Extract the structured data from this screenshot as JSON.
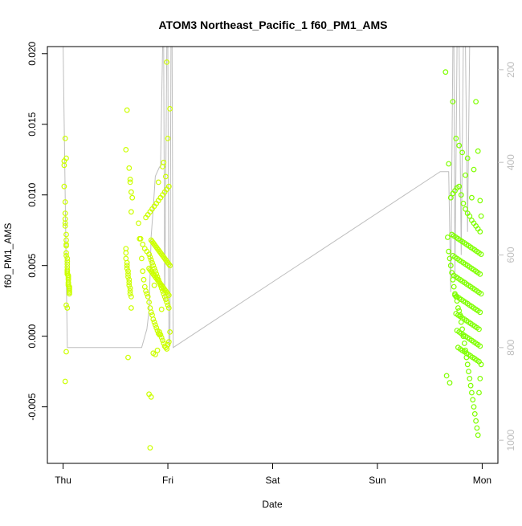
{
  "chart_data": {
    "type": "scatter",
    "title": "ATOM3 Northeast_Pacific_1 f60_PM1_AMS",
    "xlabel": "Date",
    "ylabel": "f60_PM1_AMS",
    "x_unit": "days since Thu 00:00",
    "xlim": [
      -0.15,
      4.15
    ],
    "ylim": [
      -0.009,
      0.0205
    ],
    "x_ticks": [
      {
        "value": 0,
        "label": "Thu"
      },
      {
        "value": 1,
        "label": "Fri"
      },
      {
        "value": 2,
        "label": "Sat"
      },
      {
        "value": 3,
        "label": "Sun"
      },
      {
        "value": 4,
        "label": "Mon"
      }
    ],
    "y_ticks": [
      {
        "value": -0.005,
        "label": "-0.005"
      },
      {
        "value": 0.0,
        "label": "0.000"
      },
      {
        "value": 0.005,
        "label": "0.005"
      },
      {
        "value": 0.01,
        "label": "0.010"
      },
      {
        "value": 0.015,
        "label": "0.015"
      },
      {
        "value": 0.02,
        "label": "0.020"
      }
    ],
    "secondary_axis": {
      "description": "altitude (inverted), no label",
      "lim": [
        150,
        1050
      ],
      "ticks": [
        {
          "value": 200,
          "label": "200"
        },
        {
          "value": 400,
          "label": "400"
        },
        {
          "value": 600,
          "label": "600"
        },
        {
          "value": 800,
          "label": "800"
        },
        {
          "value": 1000,
          "label": "1000"
        }
      ]
    },
    "grid": false,
    "colors": {
      "points_early": "#ccff00",
      "points_late": "#7fff00",
      "altitude_line": "#bebebe",
      "axis": "#000000",
      "secondary_axis": "#bebebe"
    },
    "altitude_trace": [
      [
        0.0,
        150
      ],
      [
        0.04,
        800
      ],
      [
        0.3,
        800
      ],
      [
        0.6,
        800
      ],
      [
        0.75,
        800
      ],
      [
        0.8,
        760
      ],
      [
        0.82,
        720
      ],
      [
        0.83,
        640
      ],
      [
        0.84,
        560
      ],
      [
        0.86,
        500
      ],
      [
        0.88,
        430
      ],
      [
        0.9,
        420
      ],
      [
        0.92,
        410
      ],
      [
        0.93,
        410
      ],
      [
        0.95,
        150
      ],
      [
        0.96,
        150
      ],
      [
        0.97,
        700
      ],
      [
        0.98,
        440
      ],
      [
        0.99,
        150
      ],
      [
        1.0,
        150
      ],
      [
        1.01,
        800
      ],
      [
        1.02,
        780
      ],
      [
        1.03,
        150
      ],
      [
        1.04,
        150
      ],
      [
        1.05,
        800
      ],
      [
        3.6,
        420
      ],
      [
        3.68,
        420
      ],
      [
        3.7,
        680
      ],
      [
        3.72,
        150
      ],
      [
        3.73,
        150
      ],
      [
        3.74,
        650
      ],
      [
        3.76,
        150
      ],
      [
        3.78,
        150
      ],
      [
        3.8,
        600
      ],
      [
        3.82,
        150
      ],
      [
        3.84,
        150
      ],
      [
        3.86,
        550
      ],
      [
        3.88,
        150
      ],
      [
        3.9,
        150
      ]
    ],
    "series": [
      {
        "x": [
          0.01,
          0.01,
          0.01,
          0.02,
          0.02,
          0.02,
          0.02,
          0.02,
          0.03,
          0.03,
          0.03,
          0.03,
          0.03,
          0.03,
          0.04,
          0.04,
          0.04,
          0.04,
          0.04,
          0.04,
          0.04,
          0.04,
          0.05,
          0.05,
          0.05,
          0.05,
          0.05,
          0.05,
          0.05,
          0.06,
          0.06,
          0.06,
          0.06,
          0.06,
          0.06,
          0.03,
          0.04,
          0.02,
          0.03,
          0.02,
          0.03,
          0.6,
          0.6,
          0.6,
          0.61,
          0.61,
          0.61,
          0.62,
          0.62,
          0.62,
          0.63,
          0.63,
          0.63,
          0.64,
          0.64,
          0.64,
          0.65,
          0.65,
          0.65,
          0.6,
          0.61,
          0.63,
          0.64,
          0.65,
          0.66,
          0.62,
          0.64,
          0.72,
          0.73,
          0.74,
          0.75,
          0.76,
          0.77,
          0.78,
          0.79,
          0.8,
          0.81,
          0.82,
          0.83,
          0.84,
          0.85,
          0.86,
          0.87,
          0.88,
          0.89,
          0.9,
          0.91,
          0.92,
          0.93,
          0.94,
          0.95,
          0.96,
          0.97,
          0.98,
          0.99,
          1.0,
          1.01,
          1.02,
          0.76,
          0.78,
          0.8,
          0.82,
          0.83,
          0.84,
          0.85,
          0.86,
          0.87,
          0.88,
          0.89,
          0.9,
          0.91,
          0.92,
          0.93,
          0.94,
          0.95,
          0.96,
          0.97,
          0.98,
          0.99,
          1.0,
          1.01,
          0.79,
          0.81,
          0.83,
          0.85,
          0.87,
          0.89,
          0.91,
          0.93,
          0.95,
          0.97,
          0.99,
          1.01,
          0.84,
          0.85,
          0.86,
          0.87,
          0.88,
          0.89,
          0.9,
          0.91,
          0.92,
          0.93,
          0.94,
          0.95,
          0.96,
          0.97,
          0.98,
          0.99,
          1.0,
          1.01,
          1.02,
          0.82,
          0.84,
          0.86,
          0.88,
          0.9,
          0.92,
          0.94,
          0.96,
          0.98,
          1.0,
          1.02,
          0.83,
          0.87,
          0.91,
          0.95,
          0.99,
          0.82,
          0.83,
          0.84,
          0.85,
          0.86,
          0.87,
          0.88,
          0.89,
          0.9,
          0.91,
          0.92,
          0.93,
          0.94,
          0.95,
          0.96,
          0.97,
          0.98,
          0.99,
          1.0,
          1.01
        ],
        "y": [
          0.0124,
          0.0121,
          0.0106,
          0.0095,
          0.0087,
          0.0083,
          0.008,
          0.0078,
          0.0072,
          0.0068,
          0.0065,
          0.0064,
          0.0059,
          0.0057,
          0.0055,
          0.0053,
          0.0051,
          0.0049,
          0.0047,
          0.0046,
          0.0045,
          0.0044,
          0.0043,
          0.0042,
          0.0041,
          0.004,
          0.0038,
          0.0037,
          0.0036,
          0.0035,
          0.0034,
          0.0033,
          0.0032,
          0.0031,
          0.003,
          0.0022,
          0.002,
          0.014,
          -0.0011,
          -0.0032,
          0.0126,
          0.0062,
          0.0059,
          0.0055,
          0.0052,
          0.005,
          0.0048,
          0.0046,
          0.0044,
          0.0042,
          0.004,
          0.0038,
          0.0036,
          0.0034,
          0.0032,
          0.003,
          0.0028,
          0.002,
          0.0088,
          0.0132,
          0.016,
          0.0119,
          0.0111,
          0.0102,
          0.0098,
          -0.0015,
          0.0109,
          0.008,
          0.0069,
          0.0069,
          0.0055,
          0.0046,
          0.004,
          0.0035,
          0.0032,
          0.003,
          0.0028,
          0.0024,
          0.002,
          0.0017,
          0.0015,
          0.0012,
          0.001,
          0.0008,
          0.0006,
          0.0004,
          0.0002,
          0.0003,
          0.0001,
          -0.0001,
          -0.0003,
          -0.0005,
          -0.0007,
          -0.0008,
          -0.0009,
          -0.0006,
          -0.0004,
          0.0003,
          0.0065,
          0.0062,
          0.006,
          0.0058,
          0.0056,
          0.0054,
          0.0052,
          0.005,
          0.0048,
          0.0046,
          0.0044,
          0.0042,
          0.004,
          0.0038,
          0.0036,
          0.0034,
          0.0032,
          0.003,
          0.0028,
          0.0026,
          0.0024,
          0.0022,
          0.002,
          0.0084,
          0.0086,
          0.0088,
          0.009,
          0.0092,
          0.0094,
          0.0096,
          0.0098,
          0.01,
          0.0102,
          0.0104,
          0.0106,
          0.0068,
          0.0067,
          0.0066,
          0.0065,
          0.0064,
          0.0063,
          0.0062,
          0.0061,
          0.006,
          0.0059,
          0.0058,
          0.0057,
          0.0056,
          0.0055,
          0.0054,
          0.0053,
          0.0052,
          0.0051,
          0.005,
          -0.0041,
          -0.0043,
          -0.0012,
          -0.0013,
          -0.001,
          0.0001,
          0.0019,
          0.0123,
          0.0113,
          0.014,
          0.0161,
          -0.0079,
          0.0036,
          0.0109,
          0.012,
          0.0194,
          0.0048,
          0.0047,
          0.0046,
          0.0045,
          0.0044,
          0.0043,
          0.0042,
          0.0041,
          0.004,
          0.0039,
          0.0038,
          0.0037,
          0.0036,
          0.0035,
          0.0034,
          0.0033,
          0.0032,
          0.0031,
          0.003,
          0.0029
        ]
      },
      {
        "x": [
          3.67,
          3.68,
          3.69,
          3.7,
          3.71,
          3.72,
          3.73,
          3.74,
          3.75,
          3.76,
          3.77,
          3.78,
          3.79,
          3.8,
          3.81,
          3.82,
          3.83,
          3.84,
          3.85,
          3.86,
          3.87,
          3.88,
          3.89,
          3.9,
          3.91,
          3.92,
          3.93,
          3.94,
          3.95,
          3.96,
          3.97,
          3.98,
          3.99,
          3.7,
          3.72,
          3.74,
          3.76,
          3.78,
          3.8,
          3.82,
          3.84,
          3.86,
          3.88,
          3.9,
          3.92,
          3.94,
          3.96,
          3.98,
          3.71,
          3.73,
          3.75,
          3.77,
          3.79,
          3.81,
          3.83,
          3.85,
          3.87,
          3.89,
          3.91,
          3.93,
          3.95,
          3.97,
          3.99,
          3.72,
          3.74,
          3.76,
          3.78,
          3.8,
          3.82,
          3.84,
          3.86,
          3.88,
          3.9,
          3.92,
          3.94,
          3.96,
          3.98,
          3.73,
          3.75,
          3.77,
          3.79,
          3.81,
          3.83,
          3.85,
          3.87,
          3.89,
          3.91,
          3.93,
          3.95,
          3.97,
          3.99,
          3.74,
          3.76,
          3.78,
          3.8,
          3.82,
          3.84,
          3.86,
          3.88,
          3.9,
          3.92,
          3.94,
          3.96,
          3.98,
          3.75,
          3.77,
          3.79,
          3.81,
          3.83,
          3.85,
          3.87,
          3.89,
          3.91,
          3.93,
          3.95,
          3.97,
          3.76,
          3.78,
          3.8,
          3.82,
          3.84,
          3.86,
          3.88,
          3.9,
          3.92,
          3.94,
          3.96,
          3.98,
          3.77,
          3.79,
          3.81,
          3.83,
          3.85,
          3.87,
          3.89,
          3.91,
          3.93,
          3.95,
          3.97,
          3.65,
          3.68,
          3.72,
          3.75,
          3.78,
          3.81,
          3.84,
          3.86,
          3.9,
          3.92,
          3.94,
          3.96,
          3.98,
          3.99,
          3.66,
          3.69
        ],
        "y": [
          0.007,
          0.006,
          0.0055,
          0.005,
          0.0045,
          0.004,
          0.0035,
          0.003,
          0.0028,
          0.0025,
          0.002,
          0.0018,
          0.0015,
          0.001,
          0.0005,
          0.0,
          -0.0005,
          -0.001,
          -0.0015,
          -0.002,
          -0.0025,
          -0.003,
          -0.0035,
          -0.004,
          -0.0045,
          -0.005,
          -0.0055,
          -0.006,
          -0.0065,
          -0.007,
          -0.004,
          -0.003,
          -0.002,
          0.0098,
          0.0101,
          0.0103,
          0.0105,
          0.0106,
          0.01,
          0.0094,
          0.009,
          0.0087,
          0.0085,
          0.0082,
          0.008,
          0.0078,
          0.0076,
          0.0074,
          0.0072,
          0.0071,
          0.007,
          0.0069,
          0.0068,
          0.0067,
          0.0066,
          0.0065,
          0.0064,
          0.0063,
          0.0062,
          0.0061,
          0.006,
          0.0059,
          0.0058,
          0.0057,
          0.0056,
          0.0055,
          0.0054,
          0.0053,
          0.0052,
          0.0051,
          0.005,
          0.0049,
          0.0048,
          0.0047,
          0.0046,
          0.0045,
          0.0044,
          0.0043,
          0.0042,
          0.0041,
          0.004,
          0.0039,
          0.0038,
          0.0037,
          0.0036,
          0.0035,
          0.0034,
          0.0033,
          0.0032,
          0.0031,
          0.003,
          0.0029,
          0.0028,
          0.0027,
          0.0026,
          0.0025,
          0.0024,
          0.0023,
          0.0022,
          0.0021,
          0.002,
          0.0019,
          0.0018,
          0.0017,
          0.0016,
          0.0015,
          0.0014,
          0.0013,
          0.0012,
          0.0011,
          0.001,
          0.0009,
          0.0008,
          0.0007,
          0.0006,
          0.0005,
          0.0004,
          0.0003,
          0.0002,
          0.0001,
          0.0,
          -0.0001,
          -0.0002,
          -0.0003,
          -0.0004,
          -0.0005,
          -0.0006,
          -0.0007,
          -0.0008,
          -0.0009,
          -0.001,
          -0.0011,
          -0.0012,
          -0.0013,
          -0.0014,
          -0.0015,
          -0.0016,
          -0.0017,
          -0.0018,
          0.0187,
          0.0122,
          0.0166,
          0.014,
          0.0135,
          0.013,
          0.0114,
          0.0126,
          0.0098,
          0.0118,
          0.0166,
          0.0131,
          0.0096,
          0.0085,
          -0.0028,
          -0.0033
        ]
      }
    ]
  }
}
